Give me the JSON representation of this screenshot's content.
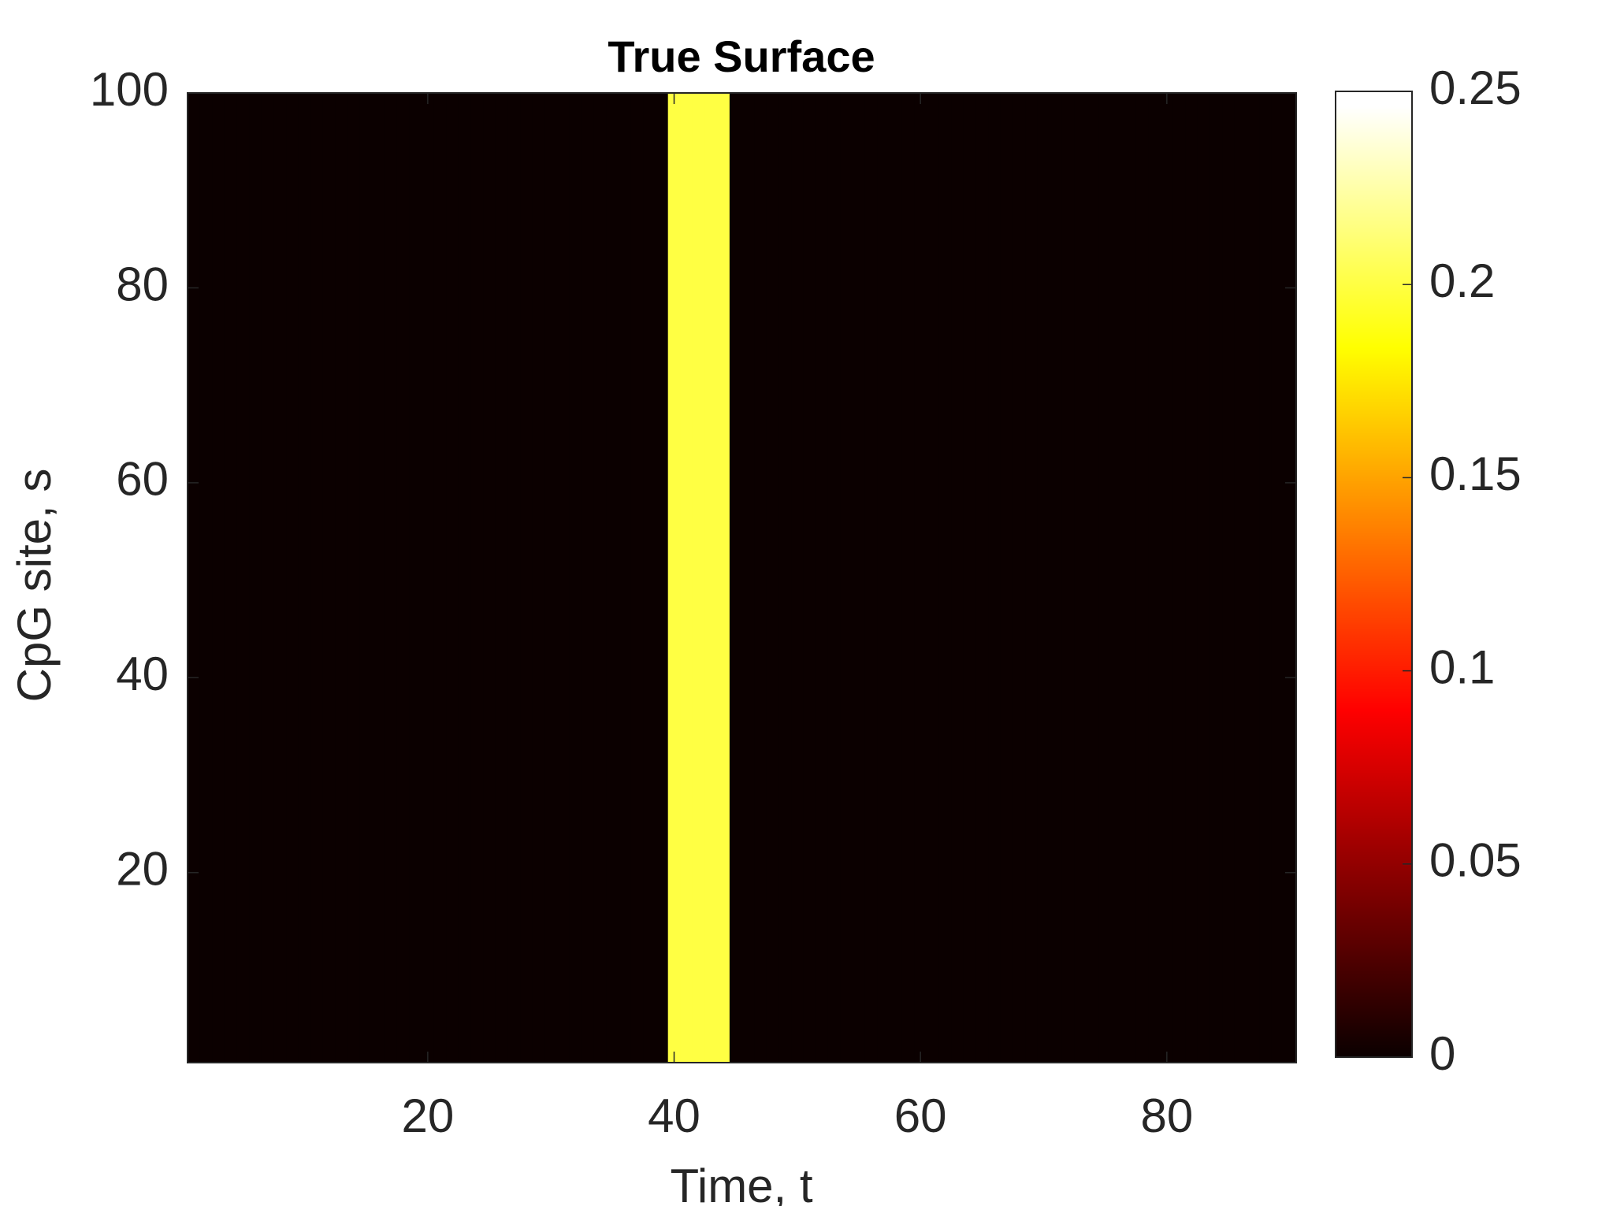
{
  "chart_data": {
    "type": "heatmap",
    "title": "True Surface",
    "x_label": "Time, t",
    "y_label": "CpG site, s",
    "x": [
      1,
      2,
      3,
      4,
      5,
      6,
      7,
      8,
      9,
      10,
      11,
      12,
      13,
      14,
      15,
      16,
      17,
      18,
      19,
      20,
      21,
      22,
      23,
      24,
      25,
      26,
      27,
      28,
      29,
      30,
      31,
      32,
      33,
      34,
      35,
      36,
      37,
      38,
      39,
      40,
      41,
      42,
      43,
      44,
      45,
      46,
      47,
      48,
      49,
      50,
      51,
      52,
      53,
      54,
      55,
      56,
      57,
      58,
      59,
      60,
      61,
      62,
      63,
      64,
      65,
      66,
      67,
      68,
      69,
      70,
      71,
      72,
      73,
      74,
      75,
      76,
      77,
      78,
      79,
      80,
      81,
      82,
      83,
      84,
      85,
      86,
      87,
      88,
      89,
      90
    ],
    "values": [
      0,
      0,
      0,
      0,
      0,
      0,
      0,
      0,
      0,
      0,
      0,
      0,
      0,
      0,
      0,
      0,
      0,
      0,
      0,
      0,
      0,
      0,
      0,
      0,
      0,
      0,
      0,
      0,
      0,
      0,
      0,
      0,
      0,
      0,
      0,
      0,
      0,
      0,
      0,
      0.2,
      0.2,
      0.2,
      0.2,
      0.2,
      0,
      0,
      0,
      0,
      0,
      0,
      0,
      0,
      0,
      0,
      0,
      0,
      0,
      0,
      0,
      0,
      0,
      0,
      0,
      0,
      0,
      0,
      0,
      0,
      0,
      0,
      0,
      0,
      0,
      0,
      0,
      0,
      0,
      0,
      0,
      0,
      0,
      0,
      0,
      0,
      0,
      0,
      0,
      0,
      0,
      0
    ],
    "xlim": [
      0.5,
      90.5
    ],
    "ylim": [
      0.5,
      100
    ],
    "xticks": [
      20,
      40,
      60,
      80
    ],
    "yticks": [
      20,
      40,
      60,
      80,
      100
    ],
    "colormap": "hot",
    "clim": [
      0,
      0.25
    ],
    "cticks": [
      0,
      0.05,
      0.1,
      0.15,
      0.2,
      0.25
    ]
  }
}
